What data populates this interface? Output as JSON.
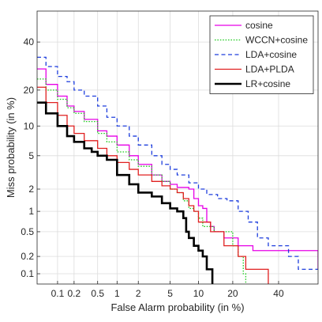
{
  "chart_data": {
    "type": "line",
    "title": "",
    "xlabel": "False Alarm probability (in %)",
    "ylabel": "Miss probability (in %)",
    "axis_scale": "probit",
    "xlim": [
      0.04,
      60
    ],
    "ylim": [
      0.065,
      55
    ],
    "x_ticks": [
      0.1,
      0.2,
      0.5,
      1,
      2,
      5,
      10,
      20,
      40
    ],
    "x_tick_labels": [
      "0.1",
      "0.2",
      "0.5",
      "1",
      "2",
      "5",
      "10",
      "20",
      "40"
    ],
    "y_ticks": [
      0.1,
      0.2,
      0.5,
      1,
      2,
      5,
      10,
      20,
      40
    ],
    "y_tick_labels": [
      "0.1",
      "0.2",
      "0.5",
      "1",
      "2",
      "5",
      "10",
      "20",
      "40"
    ],
    "grid": true,
    "legend_position": "top-right",
    "series": [
      {
        "name": "cosine",
        "color": "#e600e6",
        "dash": "solid",
        "points": [
          [
            0.04,
            28
          ],
          [
            0.06,
            22
          ],
          [
            0.1,
            18
          ],
          [
            0.15,
            15
          ],
          [
            0.2,
            13.5
          ],
          [
            0.3,
            11.5
          ],
          [
            0.5,
            9
          ],
          [
            0.7,
            8
          ],
          [
            1,
            6.5
          ],
          [
            1.5,
            5
          ],
          [
            2,
            4
          ],
          [
            3,
            3
          ],
          [
            4,
            2.5
          ],
          [
            5,
            2.3
          ],
          [
            6,
            2.1
          ],
          [
            8,
            2
          ],
          [
            9,
            1.5
          ],
          [
            10,
            1.2
          ],
          [
            11,
            1.1
          ],
          [
            12,
            0.7
          ],
          [
            13,
            0.6
          ],
          [
            14,
            0.5
          ],
          [
            17,
            0.4
          ],
          [
            22,
            0.3
          ],
          [
            28,
            0.25
          ],
          [
            50,
            0.25
          ],
          [
            60,
            0.12
          ]
        ]
      },
      {
        "name": "WCCN+cosine",
        "color": "#22cc22",
        "dash": "dotted",
        "points": [
          [
            0.04,
            24
          ],
          [
            0.06,
            20
          ],
          [
            0.1,
            17
          ],
          [
            0.15,
            14.5
          ],
          [
            0.2,
            13
          ],
          [
            0.3,
            11
          ],
          [
            0.5,
            8.5
          ],
          [
            0.7,
            7
          ],
          [
            1,
            5.5
          ],
          [
            1.5,
            4.5
          ],
          [
            2,
            3.8
          ],
          [
            3,
            3
          ],
          [
            4,
            2.5
          ],
          [
            5,
            2
          ],
          [
            6,
            1.8
          ],
          [
            7,
            1.4
          ],
          [
            8,
            1.1
          ],
          [
            9,
            1
          ],
          [
            10,
            0.8
          ],
          [
            11,
            0.6
          ],
          [
            12,
            0.6
          ],
          [
            14,
            0.5
          ],
          [
            18,
            0.5
          ],
          [
            20,
            0.3
          ],
          [
            22,
            0.2
          ],
          [
            24,
            0.1
          ],
          [
            25,
            0.065
          ]
        ]
      },
      {
        "name": "LDA+cosine",
        "color": "#1f3fdd",
        "dash": "dashed",
        "points": [
          [
            0.04,
            33
          ],
          [
            0.06,
            29
          ],
          [
            0.1,
            25
          ],
          [
            0.15,
            23
          ],
          [
            0.2,
            20
          ],
          [
            0.3,
            18
          ],
          [
            0.5,
            15
          ],
          [
            0.7,
            12
          ],
          [
            1,
            10
          ],
          [
            1.5,
            8
          ],
          [
            2,
            6.5
          ],
          [
            3,
            5
          ],
          [
            4,
            4
          ],
          [
            5,
            3.5
          ],
          [
            6,
            3
          ],
          [
            8,
            2.4
          ],
          [
            10,
            2
          ],
          [
            12,
            1.7
          ],
          [
            15,
            1.5
          ],
          [
            18,
            1.4
          ],
          [
            22,
            1
          ],
          [
            26,
            0.7
          ],
          [
            30,
            0.4
          ],
          [
            35,
            0.3
          ],
          [
            45,
            0.2
          ],
          [
            50,
            0.12
          ],
          [
            60,
            0.12
          ]
        ]
      },
      {
        "name": "LDA+PLDA",
        "color": "#e02020",
        "dash": "solid",
        "points": [
          [
            0.04,
            21
          ],
          [
            0.06,
            16
          ],
          [
            0.1,
            12.5
          ],
          [
            0.15,
            10
          ],
          [
            0.2,
            8.5
          ],
          [
            0.3,
            7.2
          ],
          [
            0.5,
            6
          ],
          [
            0.7,
            5
          ],
          [
            1,
            4.2
          ],
          [
            1.5,
            3.5
          ],
          [
            2,
            3
          ],
          [
            3,
            2.5
          ],
          [
            4,
            2.2
          ],
          [
            5,
            2
          ],
          [
            6,
            1.8
          ],
          [
            7,
            1.5
          ],
          [
            8,
            1.2
          ],
          [
            9,
            1
          ],
          [
            10,
            0.7
          ],
          [
            12,
            0.7
          ],
          [
            13,
            0.5
          ],
          [
            16,
            0.5
          ],
          [
            17,
            0.3
          ],
          [
            20,
            0.3
          ],
          [
            22,
            0.2
          ],
          [
            25,
            0.12
          ],
          [
            30,
            0.12
          ],
          [
            35,
            0.065
          ]
        ]
      },
      {
        "name": "LR+cosine",
        "color": "#000000",
        "dash": "solid",
        "thick": true,
        "points": [
          [
            0.04,
            16
          ],
          [
            0.06,
            13
          ],
          [
            0.1,
            10
          ],
          [
            0.15,
            8
          ],
          [
            0.2,
            7
          ],
          [
            0.3,
            6
          ],
          [
            0.4,
            5.5
          ],
          [
            0.5,
            5
          ],
          [
            0.7,
            4.5
          ],
          [
            1,
            3
          ],
          [
            1.5,
            2.3
          ],
          [
            2,
            1.8
          ],
          [
            3,
            1.6
          ],
          [
            4,
            1.3
          ],
          [
            5,
            1.1
          ],
          [
            6,
            1
          ],
          [
            7,
            0.8
          ],
          [
            7.5,
            0.5
          ],
          [
            8,
            0.4
          ],
          [
            9,
            0.3
          ],
          [
            10,
            0.25
          ],
          [
            11,
            0.2
          ],
          [
            12,
            0.12
          ],
          [
            13,
            0.12
          ],
          [
            13.5,
            0.065
          ]
        ]
      }
    ]
  }
}
